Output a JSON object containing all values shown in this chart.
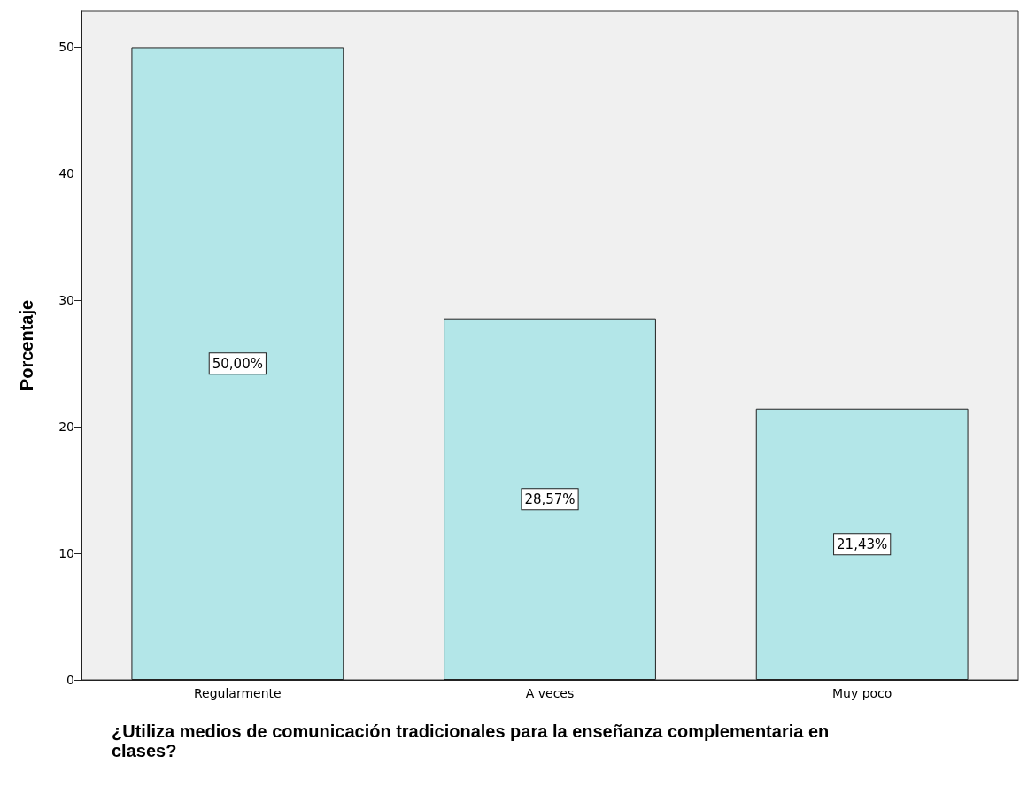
{
  "chart_data": {
    "type": "bar",
    "xlabel": "¿Utiliza medios de comunicación tradicionales para la enseñanza complementaria en clases?",
    "ylabel": "Porcentaje",
    "categories": [
      "Regularmente",
      "A veces",
      "Muy poco"
    ],
    "values": [
      50,
      28.57,
      21.43
    ],
    "value_labels": [
      "50,00%",
      "28,57%",
      "21,43%"
    ],
    "color": "#b3e6e8",
    "ylim": [
      0,
      52.9
    ],
    "yticks": [
      0,
      10,
      20,
      30,
      40,
      50
    ],
    "grid": false
  }
}
